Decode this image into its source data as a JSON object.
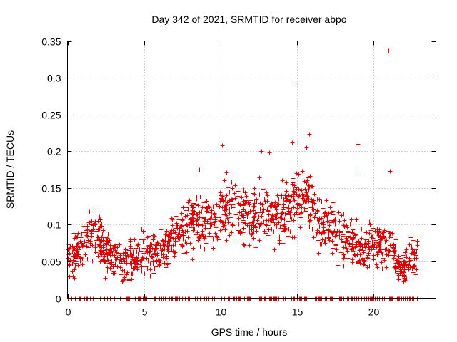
{
  "chart_data": {
    "type": "scatter",
    "title": "Day 342 of 2021, SRMTID for receiver abpo",
    "xlabel": "GPS time / hours",
    "ylabel": "SRMTID / TECUs",
    "xlim": [
      0,
      24.1
    ],
    "ylim": [
      0,
      0.35
    ],
    "x_ticks": [
      0,
      5,
      10,
      15,
      20
    ],
    "x_tick_labels": [
      "0",
      "5",
      "10",
      "15",
      "20"
    ],
    "y_ticks": [
      0,
      0.05,
      0.1,
      0.15,
      0.2,
      0.25,
      0.3,
      0.35
    ],
    "y_tick_labels": [
      "0",
      "0.05",
      "0.1",
      "0.15",
      "0.2",
      "0.25",
      "0.3",
      "0.35"
    ],
    "grid": true,
    "marker": "+",
    "color": "#e00000",
    "series": [
      {
        "name": "SRMTID",
        "x_range": [
          0,
          22.9
        ],
        "trend": [
          [
            0.0,
            0.05
          ],
          [
            0.5,
            0.06
          ],
          [
            1.0,
            0.07
          ],
          [
            1.5,
            0.09
          ],
          [
            2.0,
            0.08
          ],
          [
            2.5,
            0.065
          ],
          [
            3.0,
            0.055
          ],
          [
            3.5,
            0.05
          ],
          [
            4.0,
            0.05
          ],
          [
            4.5,
            0.055
          ],
          [
            5.0,
            0.065
          ],
          [
            5.5,
            0.06
          ],
          [
            6.0,
            0.06
          ],
          [
            6.5,
            0.075
          ],
          [
            7.0,
            0.085
          ],
          [
            7.5,
            0.095
          ],
          [
            8.0,
            0.1
          ],
          [
            8.5,
            0.11
          ],
          [
            9.0,
            0.1
          ],
          [
            9.5,
            0.11
          ],
          [
            10.0,
            0.115
          ],
          [
            10.5,
            0.12
          ],
          [
            11.0,
            0.11
          ],
          [
            11.5,
            0.115
          ],
          [
            12.0,
            0.11
          ],
          [
            12.5,
            0.11
          ],
          [
            13.0,
            0.12
          ],
          [
            13.5,
            0.115
          ],
          [
            14.0,
            0.12
          ],
          [
            14.5,
            0.125
          ],
          [
            15.0,
            0.13
          ],
          [
            15.5,
            0.135
          ],
          [
            16.0,
            0.125
          ],
          [
            16.5,
            0.105
          ],
          [
            17.0,
            0.1
          ],
          [
            17.5,
            0.095
          ],
          [
            18.0,
            0.085
          ],
          [
            18.5,
            0.075
          ],
          [
            19.0,
            0.07
          ],
          [
            19.5,
            0.07
          ],
          [
            20.0,
            0.075
          ],
          [
            20.5,
            0.075
          ],
          [
            21.0,
            0.075
          ],
          [
            21.5,
            0.045
          ],
          [
            22.0,
            0.04
          ],
          [
            22.5,
            0.055
          ],
          [
            22.9,
            0.065
          ]
        ],
        "outliers": [
          {
            "x": 21.0,
            "y": 0.337
          },
          {
            "x": 14.9,
            "y": 0.293
          },
          {
            "x": 15.8,
            "y": 0.223
          },
          {
            "x": 14.7,
            "y": 0.212
          },
          {
            "x": 10.1,
            "y": 0.208
          },
          {
            "x": 19.0,
            "y": 0.21
          },
          {
            "x": 15.6,
            "y": 0.205
          },
          {
            "x": 12.7,
            "y": 0.2
          },
          {
            "x": 13.2,
            "y": 0.198
          },
          {
            "x": 8.6,
            "y": 0.175
          },
          {
            "x": 19.0,
            "y": 0.172
          },
          {
            "x": 21.1,
            "y": 0.173
          }
        ]
      }
    ]
  }
}
